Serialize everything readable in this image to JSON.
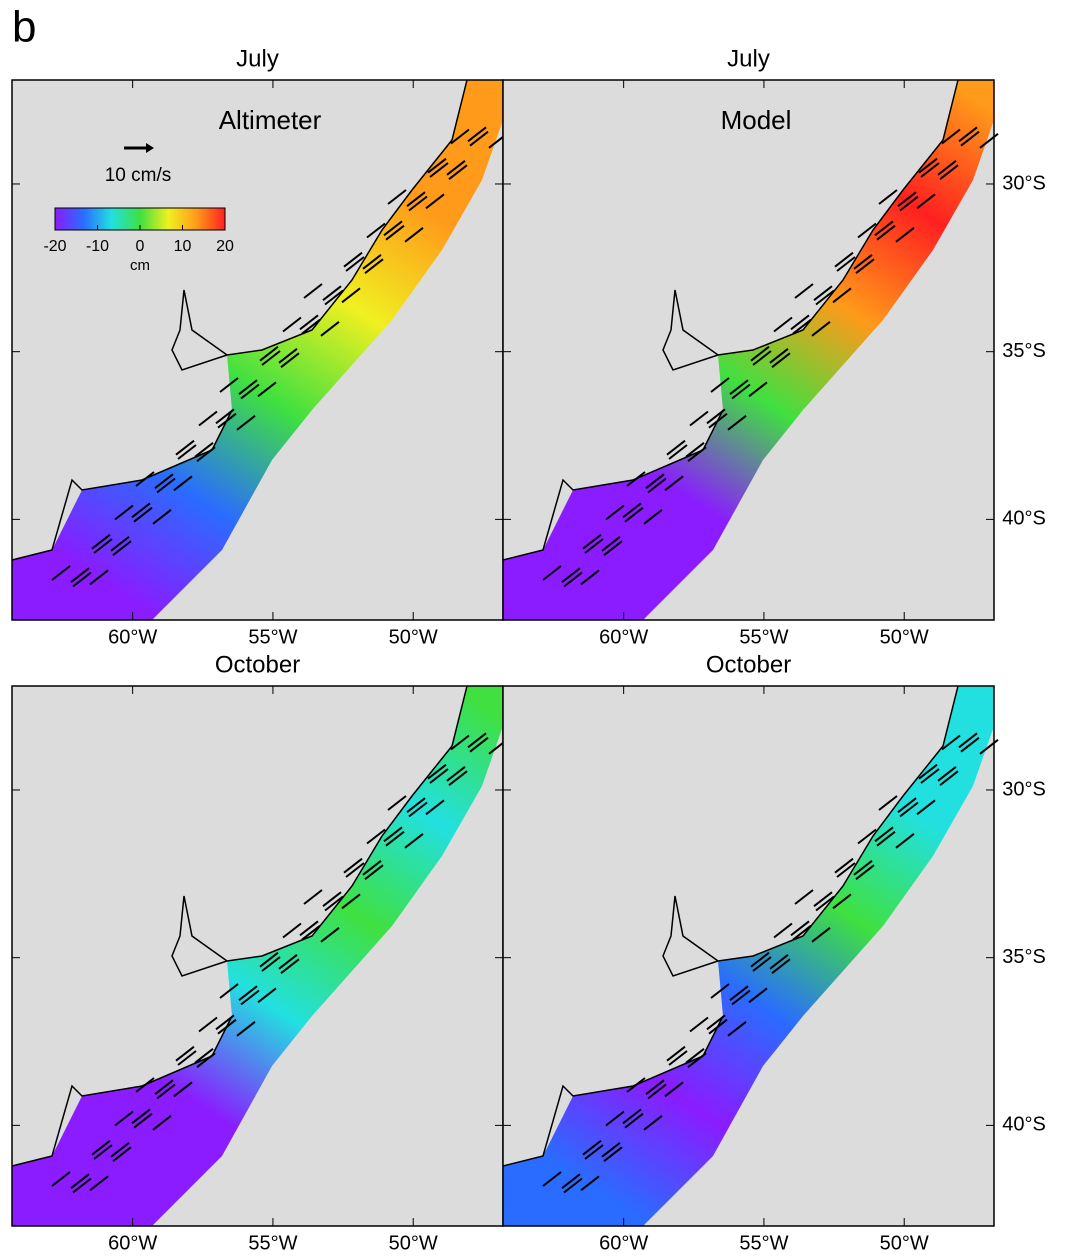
{
  "panel_label": "b",
  "map": {
    "xlim": [
      -64.3,
      -46.8
    ],
    "ylim": [
      -43,
      -26.9
    ],
    "xticks": [
      {
        "value": -60,
        "label": "60°W"
      },
      {
        "value": -55,
        "label": "55°W"
      },
      {
        "value": -50,
        "label": "50°W"
      }
    ],
    "yticks": [
      {
        "value": -30,
        "label": "30°S"
      },
      {
        "value": -35,
        "label": "35°S"
      },
      {
        "value": -40,
        "label": "40°S"
      }
    ]
  },
  "panels": [
    {
      "title": "July",
      "source": "Altimeter"
    },
    {
      "title": "July",
      "source": "Model"
    },
    {
      "title": "October"
    },
    {
      "title": "October"
    }
  ],
  "scale_arrow": {
    "label": "10 cm/s"
  },
  "colorbar": {
    "range": [
      -20,
      20
    ],
    "ticks": [
      -20,
      -10,
      0,
      10,
      20
    ],
    "unit": "cm",
    "colors": [
      "#8a1cff",
      "#2a6cff",
      "#22e0e0",
      "#3fe040",
      "#f0f020",
      "#ff9a1a",
      "#ff2020"
    ]
  }
}
